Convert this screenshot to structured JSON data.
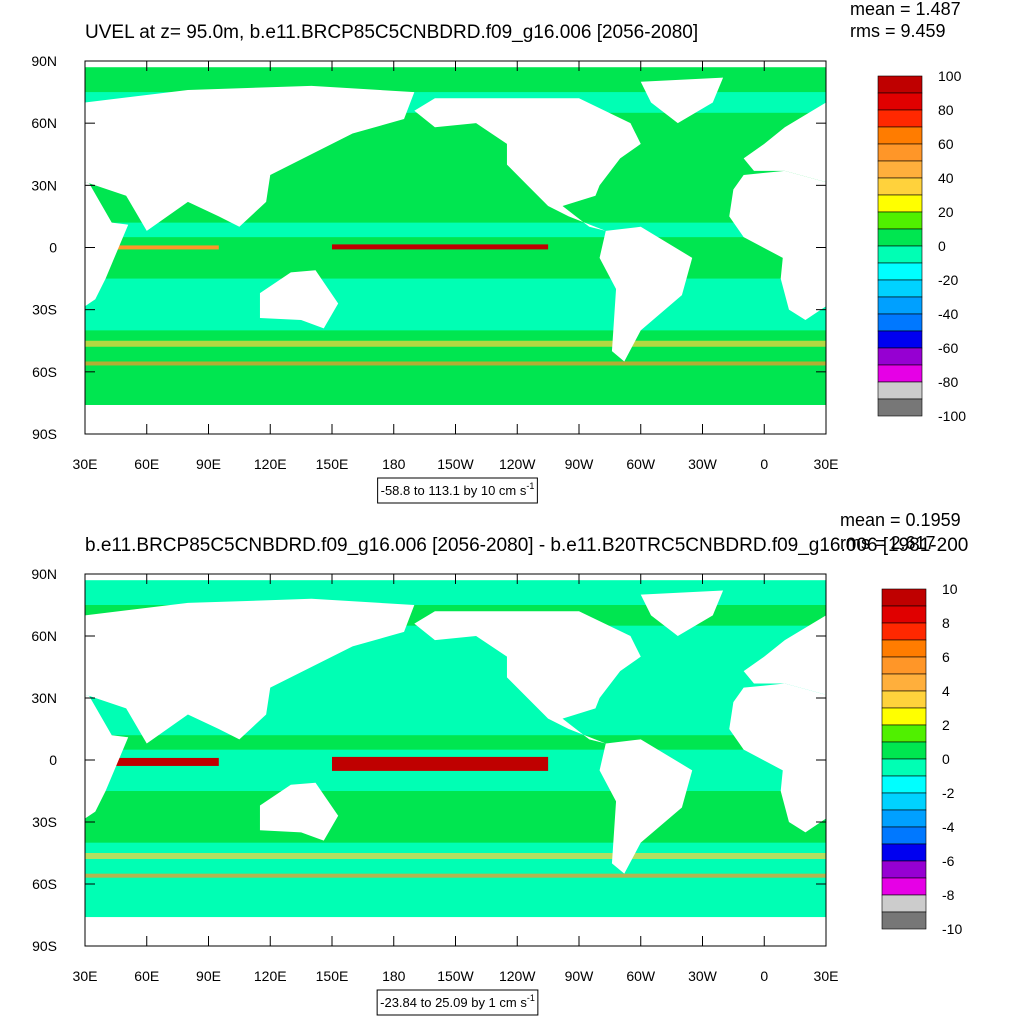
{
  "panels": [
    {
      "title": "UVEL at z=  95.0m, b.e11.BRCP85C5CNBDRD.f09_g16.006 [2056-2080]",
      "mean": "mean = 1.487",
      "rms": "rms = 9.459",
      "lat_labels": [
        "90N",
        "60N",
        "30N",
        "0",
        "30S",
        "60S",
        "90S"
      ],
      "lon_labels": [
        "30E",
        "60E",
        "90E",
        "120E",
        "150E",
        "180",
        "150W",
        "120W",
        "90W",
        "60W",
        "30W",
        "0",
        "30E"
      ],
      "range_note": "-58.8 to 113.1 by 10 cm s",
      "range_unit_exp": "-1",
      "colorbar": {
        "labels": [
          "100",
          "80",
          "60",
          "40",
          "20",
          "0",
          "-20",
          "-40",
          "-60",
          "-80",
          "-100"
        ],
        "colors": [
          "#bf0000",
          "#e00000",
          "#ff2800",
          "#ff7c00",
          "#ff9628",
          "#ffaf3c",
          "#ffd23c",
          "#ffff00",
          "#50f000",
          "#00e650",
          "#00ffb4",
          "#00ffff",
          "#00d2ff",
          "#00a0ff",
          "#0078ff",
          "#0000f0",
          "#9600d2",
          "#e600e6",
          "#cccccc",
          "#777777"
        ]
      }
    },
    {
      "title": "b.e11.BRCP85C5CNBDRD.f09_g16.006 [2056-2080] - b.e11.B20TRC5CNBDRD.f09_g16.006 [1981-200",
      "mean": "mean = 0.1959",
      "rms": "rms = 2.617",
      "lat_labels": [
        "90N",
        "60N",
        "30N",
        "0",
        "30S",
        "60S",
        "90S"
      ],
      "lon_labels": [
        "30E",
        "60E",
        "90E",
        "120E",
        "150E",
        "180",
        "150W",
        "120W",
        "90W",
        "60W",
        "30W",
        "0",
        "30E"
      ],
      "range_note": "-23.84 to 25.09 by 1 cm s",
      "range_unit_exp": "-1",
      "colorbar": {
        "labels": [
          "10",
          "8",
          "6",
          "4",
          "2",
          "0",
          "-2",
          "-4",
          "-6",
          "-8",
          "-10"
        ],
        "colors": [
          "#bf0000",
          "#e00000",
          "#ff2800",
          "#ff7c00",
          "#ff9628",
          "#ffaf3c",
          "#ffd23c",
          "#ffff00",
          "#50f000",
          "#00e650",
          "#00ffb4",
          "#00ffff",
          "#00d2ff",
          "#00a0ff",
          "#0078ff",
          "#0000f0",
          "#9600d2",
          "#e600e6",
          "#cccccc",
          "#777777"
        ]
      }
    }
  ]
}
